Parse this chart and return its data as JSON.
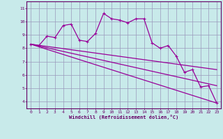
{
  "xlabel": "Windchill (Refroidissement éolien,°C)",
  "x_values": [
    0,
    1,
    2,
    3,
    4,
    5,
    6,
    7,
    8,
    9,
    10,
    11,
    12,
    13,
    14,
    15,
    16,
    17,
    18,
    19,
    20,
    21,
    22,
    23
  ],
  "main_line": [
    8.3,
    8.2,
    8.9,
    8.8,
    9.7,
    9.8,
    8.6,
    8.5,
    9.1,
    10.6,
    10.2,
    10.1,
    9.9,
    10.2,
    10.2,
    8.4,
    8.0,
    8.2,
    7.4,
    6.2,
    6.4,
    5.1,
    5.2,
    3.9
  ],
  "line2_start": 8.3,
  "line2_end": 6.4,
  "line3_start": 8.3,
  "line3_end": 5.2,
  "line4_start": 8.3,
  "line4_end": 3.9,
  "line_color": "#990099",
  "bg_color": "#c8eaea",
  "plot_bg": "#c8eaea",
  "grid_color": "#9999bb",
  "ylim": [
    3.5,
    11.5
  ],
  "xlim": [
    -0.5,
    23.5
  ],
  "yticks": [
    4,
    5,
    6,
    7,
    8,
    9,
    10,
    11
  ],
  "xticks": [
    0,
    1,
    2,
    3,
    4,
    5,
    6,
    7,
    8,
    9,
    10,
    11,
    12,
    13,
    14,
    15,
    16,
    17,
    18,
    19,
    20,
    21,
    22,
    23
  ]
}
